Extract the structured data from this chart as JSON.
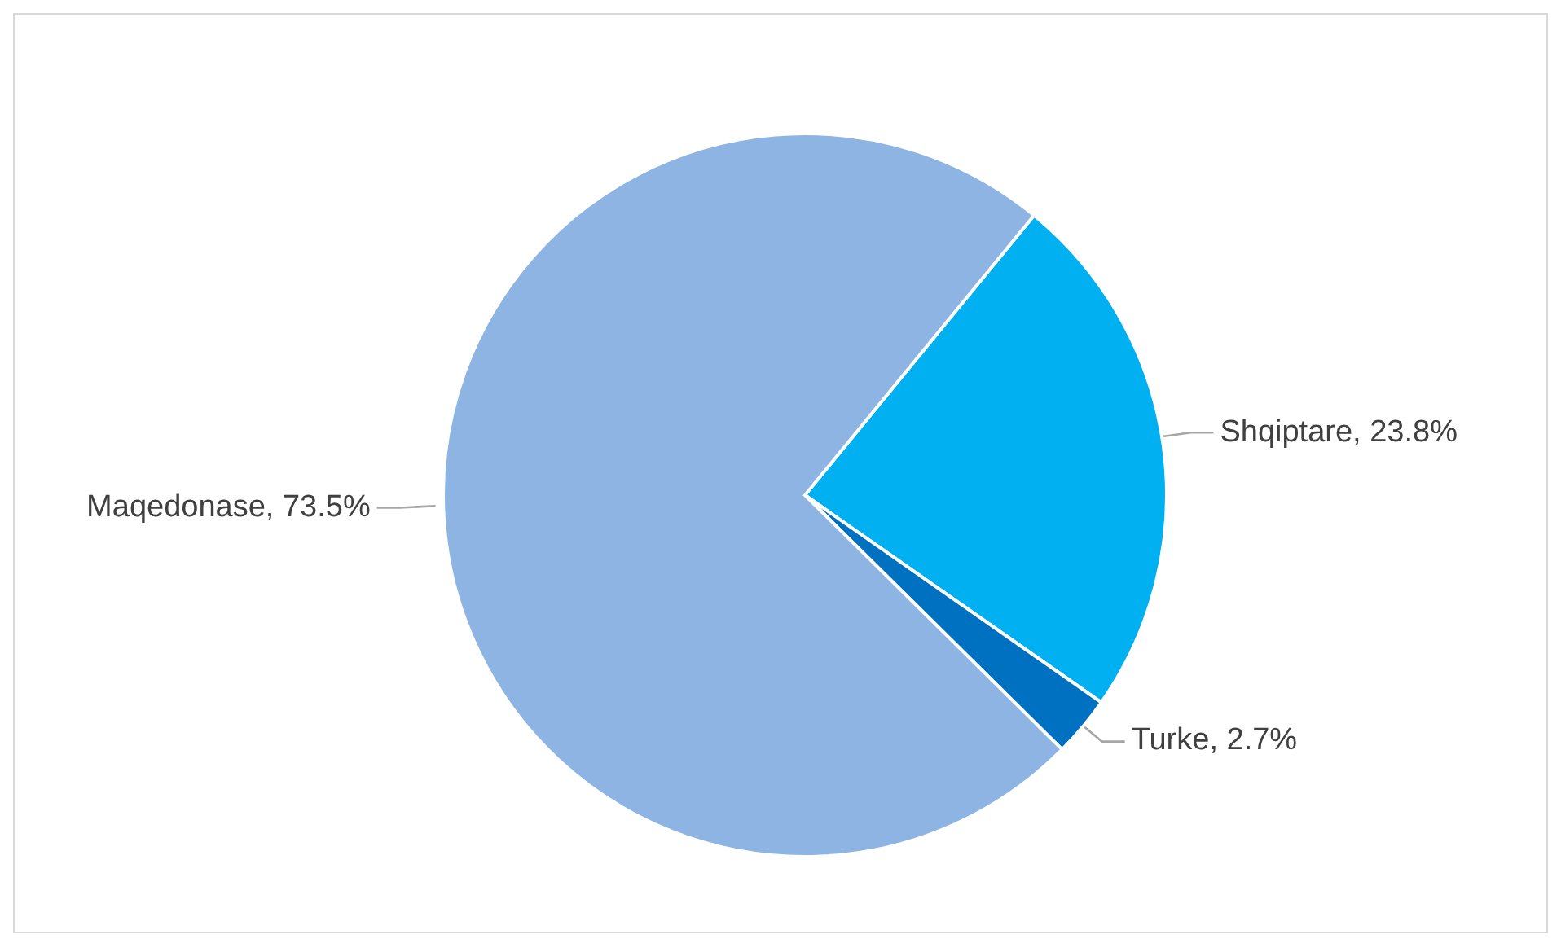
{
  "chart_data": {
    "type": "pie",
    "categories": [
      "Shqiptare",
      "Turke",
      "Maqedonase"
    ],
    "values": [
      23.8,
      2.7,
      73.5
    ],
    "colors": [
      "#00b0f0",
      "#0070c0",
      "#8eb4e3"
    ],
    "value_labels": [
      "23.8%",
      "2.7%",
      "73.5%"
    ],
    "legend": false
  }
}
